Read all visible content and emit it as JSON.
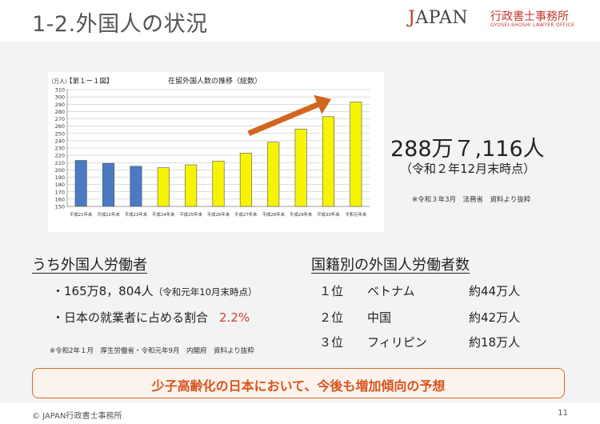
{
  "header": {
    "title": "1-2.外国人の状況",
    "logo_main_red": "J",
    "logo_main_rest": "APAN",
    "logo_jp": "行政書士事務所",
    "logo_sub": "GYOSEI-SHOSHI LAWYER OFFICE"
  },
  "chart_data": {
    "type": "bar",
    "figure_label": "【第１ー１図】",
    "title": "在留外国人数の推移（総数）",
    "yunit": "（万人）",
    "ylim": [
      150,
      310
    ],
    "ytick_step": 10,
    "grid": true,
    "categories": [
      "平成21年末",
      "平成22年末",
      "平成23年末",
      "平成24年末",
      "平成25年末",
      "平成26年末",
      "平成27年末",
      "平成28年末",
      "平成29年末",
      "平成30年末",
      "令和元年末"
    ],
    "values": [
      213,
      209,
      205,
      203,
      207,
      212,
      223,
      238,
      256,
      273,
      293
    ],
    "bar_colors": [
      "#4a7ac4",
      "#4a7ac4",
      "#4a7ac4",
      "#f7f400",
      "#f7f400",
      "#f7f400",
      "#f7f400",
      "#f7f400",
      "#f7f400",
      "#f7f400",
      "#f7f400"
    ],
    "trend_arrow_color": "#d2661f"
  },
  "summary": {
    "big_number": "288万７,116人",
    "as_of": "（令和２年12月末時点）",
    "source": "※令和３年3月　法務省　資料より抜粋"
  },
  "workers": {
    "title": "うち外国人労働者",
    "bullet1_main": "・165万8，804人",
    "bullet1_note": "（令和元年10月末時点）",
    "bullet2_main": "・日本の就業者に占める割合",
    "bullet2_pct": "2.2%",
    "source": "※令和2年１月　厚生労働省・令和元年9月　内閣府　資料より抜粋"
  },
  "nationality": {
    "title": "国籍別の外国人労働者数",
    "rows": [
      {
        "rank": "１位",
        "country": "ベトナム",
        "count": "約44万人"
      },
      {
        "rank": "２位",
        "country": "中国",
        "count": "約42万人"
      },
      {
        "rank": "３位",
        "country": "フィリピン",
        "count": "約18万人"
      }
    ]
  },
  "banner": {
    "text": "少子高齢化の日本において、今後も増加傾向の予想"
  },
  "footer": {
    "copyright": "© JAPAN行政書士事務所",
    "page": "11"
  }
}
